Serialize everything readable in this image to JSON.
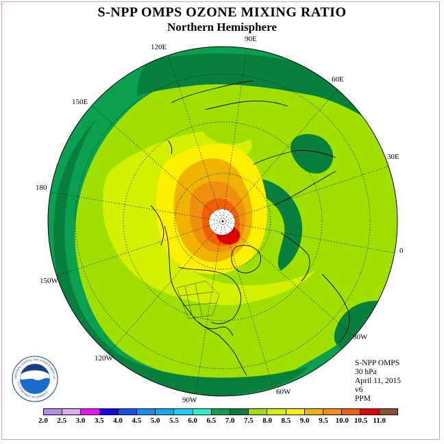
{
  "title": "S-NPP OMPS OZONE MIXING RATIO",
  "subtitle": "Northern Hemisphere",
  "longitude_labels": {
    "lon_120e": "120E",
    "lon_90e": "90E",
    "lon_60e": "60E",
    "lon_150e": "150E",
    "lon_30e": "30E",
    "lon_180": "180",
    "lon_0": "0",
    "lon_150w": "150W",
    "lon_30w": "30W",
    "lon_120w": "120W",
    "lon_60w": "60W",
    "lon_90w": "90W"
  },
  "info": {
    "instrument": "S-NPP OMPS",
    "level": "30 hPa",
    "date": "April 11, 2015",
    "version": "v6",
    "units": "PPM"
  },
  "logo": {
    "text": "NOAA",
    "ring_text": "NATIONAL OCEANIC AND ATMOSPHERIC ADMINISTRATION",
    "ring_bottom": "U.S. DEPARTMENT OF COMMERCE"
  },
  "colorbar": {
    "labels": [
      "2.0",
      "2.5",
      "3.0",
      "3.5",
      "4.0",
      "4.5",
      "5.0",
      "5.5",
      "6.0",
      "6.5",
      "7.0",
      "7.5",
      "8.0",
      "8.5",
      "9.0",
      "9.5",
      "10.0",
      "10.5",
      "11.0"
    ],
    "colors": [
      "#b38fe6",
      "#dcaaf0",
      "#ee10ee",
      "#1a00e6",
      "#1450f0",
      "#1a8cf0",
      "#10aaf0",
      "#1ad2f0",
      "#28f0c8",
      "#0aa050",
      "#06803c",
      "#a0e000",
      "#d2f000",
      "#fff000",
      "#f0b400",
      "#f09010",
      "#f06000",
      "#e00000",
      "#8c5028"
    ]
  }
}
